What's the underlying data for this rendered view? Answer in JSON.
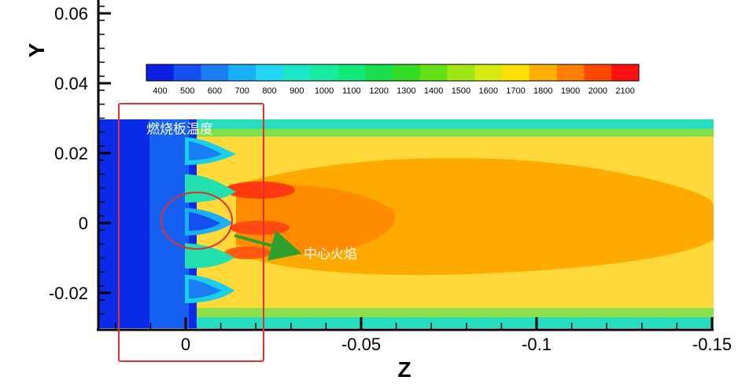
{
  "chart_data": {
    "type": "heatmap",
    "xlabel": "Z",
    "ylabel": "Y",
    "x_ticks": [
      "0",
      "-0.05",
      "-0.1",
      "-0.15"
    ],
    "y_ticks": [
      "0.06",
      "0.04",
      "0.02",
      "0",
      "-0.02"
    ],
    "xlim": [
      0.025,
      -0.15
    ],
    "ylim": [
      -0.03,
      0.065
    ],
    "x_reversed": true,
    "colorbar": {
      "levels": [
        400,
        500,
        600,
        700,
        800,
        900,
        1000,
        1100,
        1200,
        1300,
        1400,
        1500,
        1600,
        1700,
        1800,
        1900,
        2000,
        2100
      ],
      "colors": [
        "#0a1fe0",
        "#1450f0",
        "#1a7ff5",
        "#1ab0f7",
        "#22d5f0",
        "#1ee6c8",
        "#18eaa0",
        "#14e878",
        "#18e04c",
        "#34dc22",
        "#66e016",
        "#a0e614",
        "#d6ea14",
        "#ffe000",
        "#ffb000",
        "#ff8000",
        "#ff4800",
        "#ff1010"
      ]
    },
    "annotations": [
      {
        "label": "燃烧板温度",
        "shape": "rectangle",
        "color": "#e03030"
      },
      {
        "label": "中心火焰",
        "shape": "circle+arrow",
        "color": "#e03030",
        "arrow_color": "#2ea02e"
      }
    ]
  }
}
